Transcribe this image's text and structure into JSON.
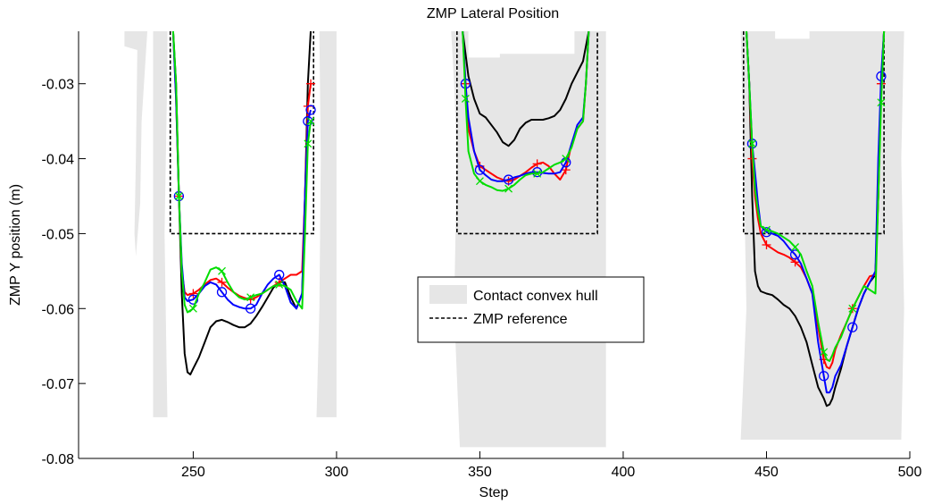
{
  "chart_data": {
    "type": "line",
    "title": "ZMP Lateral Position",
    "xlabel": "Step",
    "ylabel": "ZMP Y position (m)",
    "xlim": [
      210,
      500
    ],
    "ylim": [
      -0.08,
      -0.023
    ],
    "x_ticks": [
      250,
      300,
      350,
      400,
      450,
      500
    ],
    "x_tick_labels": [
      "250",
      "300",
      "350",
      "400",
      "450",
      "500"
    ],
    "y_ticks": [
      -0.08,
      -0.07,
      -0.06,
      -0.05,
      -0.04,
      -0.03
    ],
    "y_tick_labels": [
      "-0.08",
      "-0.07",
      "-0.06",
      "-0.05",
      "-0.04",
      "-0.03"
    ],
    "grid": false,
    "legend": {
      "position": "center",
      "entries": [
        "Contact convex hull",
        "ZMP reference"
      ]
    },
    "colors": {
      "hull": "#e6e6e6",
      "reference": "#000000",
      "black_series": "#000000",
      "red_series": "#ff0000",
      "blue_series": "#0000ff",
      "green_series": "#00dd00"
    },
    "hull_regions": [
      [
        [
          226,
          -0.023
        ],
        [
          241,
          -0.023
        ],
        [
          241,
          -0.0275
        ],
        [
          240,
          -0.05
        ],
        [
          241,
          -0.0745
        ],
        [
          293,
          -0.0745
        ],
        [
          294,
          -0.06
        ],
        [
          294.5,
          -0.04
        ],
        [
          294,
          -0.023
        ],
        [
          300,
          -0.023
        ],
        [
          300,
          -0.0745
        ],
        [
          236,
          -0.0745
        ],
        [
          236,
          -0.023
        ],
        [
          234,
          -0.023
        ],
        [
          232,
          -0.035
        ],
        [
          231.5,
          -0.046
        ],
        [
          230,
          -0.053
        ],
        [
          229.5,
          -0.05
        ],
        [
          230,
          -0.04
        ],
        [
          230.5,
          -0.0255
        ],
        [
          226,
          -0.025
        ]
      ],
      [
        [
          340,
          -0.023
        ],
        [
          346,
          -0.023
        ],
        [
          346,
          -0.0265
        ],
        [
          357,
          -0.0265
        ],
        [
          357,
          -0.026
        ],
        [
          383,
          -0.026
        ],
        [
          383,
          -0.023
        ],
        [
          394,
          -0.023
        ],
        [
          394,
          -0.0785
        ],
        [
          343,
          -0.0785
        ],
        [
          341,
          -0.06
        ],
        [
          342,
          -0.04
        ],
        [
          341,
          -0.03
        ]
      ],
      [
        [
          441,
          -0.023
        ],
        [
          453,
          -0.023
        ],
        [
          453,
          -0.024
        ],
        [
          465,
          -0.024
        ],
        [
          465,
          -0.023
        ],
        [
          498,
          -0.023
        ],
        [
          497,
          -0.04
        ],
        [
          498,
          -0.06
        ],
        [
          497,
          -0.0775
        ],
        [
          441,
          -0.0775
        ],
        [
          443,
          -0.06
        ],
        [
          442,
          -0.04
        ]
      ]
    ],
    "zmp_reference": [
      {
        "x": [
          242,
          242,
          292,
          292
        ],
        "y": [
          -0.023,
          -0.05,
          -0.05,
          -0.023
        ]
      },
      {
        "x": [
          342,
          342,
          391,
          391
        ],
        "y": [
          -0.023,
          -0.05,
          -0.05,
          -0.023
        ]
      },
      {
        "x": [
          442,
          442,
          491,
          491
        ],
        "y": [
          -0.023,
          -0.05,
          -0.05,
          -0.023
        ]
      }
    ],
    "series": [
      {
        "color": "#000000",
        "marker": "none",
        "segments": [
          {
            "x": [
              243,
              244,
              245,
              246,
              247,
              248,
              249,
              250,
              252,
              254,
              256,
              258,
              260,
              262,
              264,
              266,
              268,
              270,
              272,
              274,
              276,
              278,
              280,
              282,
              284,
              286,
              288,
              289,
              290,
              291
            ],
            "y": [
              -0.023,
              -0.03,
              -0.045,
              -0.058,
              -0.066,
              -0.0685,
              -0.0688,
              -0.068,
              -0.0665,
              -0.0645,
              -0.0625,
              -0.0617,
              -0.0615,
              -0.0618,
              -0.0622,
              -0.0625,
              -0.0625,
              -0.062,
              -0.061,
              -0.0598,
              -0.0585,
              -0.0572,
              -0.0565,
              -0.0565,
              -0.0585,
              -0.06,
              -0.058,
              -0.045,
              -0.03,
              -0.023
            ]
          },
          {
            "x": [
              344,
              345,
              346,
              348,
              350,
              352,
              354,
              356,
              358,
              360,
              362,
              364,
              366,
              368,
              370,
              372,
              374,
              376,
              378,
              380,
              382,
              384,
              386,
              387,
              388
            ],
            "y": [
              -0.023,
              -0.026,
              -0.029,
              -0.032,
              -0.034,
              -0.0345,
              -0.0355,
              -0.0365,
              -0.0378,
              -0.0383,
              -0.0375,
              -0.036,
              -0.0352,
              -0.0348,
              -0.0348,
              -0.0348,
              -0.0346,
              -0.0343,
              -0.0335,
              -0.032,
              -0.03,
              -0.0285,
              -0.027,
              -0.025,
              -0.023
            ]
          },
          {
            "x": [
              443,
              444,
              445,
              446,
              447,
              448,
              450,
              452,
              454,
              456,
              458,
              460,
              462,
              464,
              466,
              468,
              470,
              471,
              472,
              473,
              474,
              476,
              478,
              480,
              482,
              484,
              486,
              488,
              489,
              490,
              491
            ],
            "y": [
              -0.023,
              -0.03,
              -0.045,
              -0.055,
              -0.057,
              -0.0577,
              -0.058,
              -0.0582,
              -0.0588,
              -0.0595,
              -0.06,
              -0.061,
              -0.0625,
              -0.0645,
              -0.0675,
              -0.0705,
              -0.072,
              -0.073,
              -0.0728,
              -0.072,
              -0.0705,
              -0.068,
              -0.065,
              -0.0625,
              -0.06,
              -0.058,
              -0.0565,
              -0.0555,
              -0.045,
              -0.03,
              -0.023
            ]
          }
        ]
      },
      {
        "color": "#ff0000",
        "marker": "+",
        "segments": [
          {
            "x": [
              243,
              244,
              245,
              246,
              247,
              248,
              250,
              252,
              254,
              256,
              258,
              260,
              262,
              264,
              266,
              268,
              270,
              272,
              274,
              276,
              278,
              280,
              282,
              284,
              286,
              288,
              289,
              290,
              291
            ],
            "y": [
              -0.023,
              -0.032,
              -0.045,
              -0.055,
              -0.0578,
              -0.0582,
              -0.058,
              -0.0575,
              -0.0568,
              -0.0562,
              -0.056,
              -0.0565,
              -0.0572,
              -0.0578,
              -0.0583,
              -0.0586,
              -0.0588,
              -0.0585,
              -0.058,
              -0.0575,
              -0.057,
              -0.0565,
              -0.056,
              -0.0555,
              -0.0555,
              -0.055,
              -0.045,
              -0.033,
              -0.03
            ]
          },
          {
            "x": [
              344,
              345,
              346,
              348,
              350,
              352,
              354,
              356,
              358,
              360,
              362,
              364,
              366,
              368,
              370,
              372,
              374,
              376,
              378,
              380,
              382,
              384,
              386,
              387,
              388
            ],
            "y": [
              -0.023,
              -0.03,
              -0.036,
              -0.039,
              -0.041,
              -0.0415,
              -0.042,
              -0.0425,
              -0.0428,
              -0.043,
              -0.0428,
              -0.0423,
              -0.0418,
              -0.0412,
              -0.0407,
              -0.0405,
              -0.041,
              -0.042,
              -0.0428,
              -0.0415,
              -0.038,
              -0.036,
              -0.035,
              -0.03,
              -0.023
            ]
          },
          {
            "x": [
              443,
              444,
              445,
              446,
              447,
              448,
              450,
              452,
              454,
              456,
              458,
              460,
              462,
              464,
              466,
              468,
              470,
              471,
              472,
              473,
              474,
              476,
              478,
              480,
              482,
              484,
              486,
              488,
              489,
              490,
              491
            ],
            "y": [
              -0.023,
              -0.03,
              -0.04,
              -0.045,
              -0.048,
              -0.05,
              -0.0515,
              -0.052,
              -0.0525,
              -0.0528,
              -0.0532,
              -0.0538,
              -0.0545,
              -0.056,
              -0.058,
              -0.0625,
              -0.0668,
              -0.0678,
              -0.068,
              -0.0672,
              -0.0655,
              -0.0635,
              -0.0618,
              -0.06,
              -0.0585,
              -0.057,
              -0.0557,
              -0.0555,
              -0.045,
              -0.03,
              -0.023
            ]
          }
        ]
      },
      {
        "color": "#0000ff",
        "marker": "o",
        "segments": [
          {
            "x": [
              243,
              244,
              245,
              246,
              247,
              248,
              250,
              252,
              254,
              256,
              258,
              260,
              262,
              264,
              266,
              268,
              270,
              272,
              274,
              276,
              278,
              280,
              282,
              284,
              286,
              288,
              289,
              290,
              291
            ],
            "y": [
              -0.023,
              -0.032,
              -0.045,
              -0.054,
              -0.0585,
              -0.059,
              -0.0588,
              -0.058,
              -0.057,
              -0.0565,
              -0.0568,
              -0.0578,
              -0.0588,
              -0.0595,
              -0.0598,
              -0.06,
              -0.06,
              -0.0595,
              -0.058,
              -0.0568,
              -0.056,
              -0.0555,
              -0.057,
              -0.0592,
              -0.06,
              -0.058,
              -0.045,
              -0.035,
              -0.0335
            ]
          },
          {
            "x": [
              344,
              345,
              346,
              348,
              350,
              352,
              354,
              356,
              358,
              360,
              362,
              364,
              366,
              368,
              370,
              372,
              374,
              376,
              378,
              380,
              382,
              384,
              386,
              387,
              388
            ],
            "y": [
              -0.023,
              -0.03,
              -0.0345,
              -0.039,
              -0.0415,
              -0.0422,
              -0.0428,
              -0.043,
              -0.043,
              -0.0428,
              -0.0425,
              -0.0423,
              -0.042,
              -0.0418,
              -0.0418,
              -0.0419,
              -0.042,
              -0.042,
              -0.0418,
              -0.0405,
              -0.038,
              -0.0355,
              -0.0345,
              -0.03,
              -0.023
            ]
          },
          {
            "x": [
              443,
              444,
              445,
              446,
              447,
              448,
              450,
              452,
              454,
              456,
              458,
              460,
              462,
              464,
              466,
              468,
              470,
              471,
              472,
              473,
              474,
              476,
              478,
              480,
              482,
              484,
              486,
              488,
              489,
              490,
              491
            ],
            "y": [
              -0.023,
              -0.03,
              -0.038,
              -0.0418,
              -0.046,
              -0.049,
              -0.0498,
              -0.05,
              -0.0503,
              -0.051,
              -0.052,
              -0.0528,
              -0.054,
              -0.056,
              -0.058,
              -0.0645,
              -0.069,
              -0.0712,
              -0.0712,
              -0.0705,
              -0.069,
              -0.0675,
              -0.065,
              -0.0625,
              -0.06,
              -0.058,
              -0.0565,
              -0.055,
              -0.04,
              -0.029,
              -0.023
            ]
          }
        ]
      },
      {
        "color": "#00dd00",
        "marker": "x",
        "segments": [
          {
            "x": [
              243,
              244,
              245,
              246,
              247,
              248,
              250,
              252,
              254,
              256,
              258,
              260,
              262,
              264,
              266,
              268,
              270,
              272,
              274,
              276,
              278,
              280,
              282,
              284,
              286,
              288,
              289,
              290,
              291
            ],
            "y": [
              -0.023,
              -0.03,
              -0.045,
              -0.055,
              -0.0595,
              -0.0605,
              -0.06,
              -0.058,
              -0.0565,
              -0.0548,
              -0.0545,
              -0.055,
              -0.0565,
              -0.0578,
              -0.0585,
              -0.0588,
              -0.0585,
              -0.0582,
              -0.058,
              -0.0575,
              -0.057,
              -0.0568,
              -0.057,
              -0.0575,
              -0.059,
              -0.06,
              -0.05,
              -0.038,
              -0.035
            ]
          },
          {
            "x": [
              344,
              345,
              346,
              348,
              350,
              352,
              354,
              356,
              358,
              360,
              362,
              364,
              366,
              368,
              370,
              372,
              374,
              376,
              378,
              380,
              382,
              384,
              386,
              387,
              388
            ],
            "y": [
              -0.023,
              -0.032,
              -0.039,
              -0.042,
              -0.043,
              -0.0435,
              -0.0438,
              -0.0442,
              -0.0443,
              -0.044,
              -0.0435,
              -0.0428,
              -0.0422,
              -0.042,
              -0.042,
              -0.0418,
              -0.0413,
              -0.0408,
              -0.0405,
              -0.04,
              -0.0385,
              -0.036,
              -0.035,
              -0.03,
              -0.023
            ]
          },
          {
            "x": [
              443,
              444,
              445,
              446,
              447,
              448,
              450,
              452,
              454,
              456,
              458,
              460,
              462,
              464,
              466,
              468,
              470,
              471,
              472,
              473,
              474,
              476,
              478,
              480,
              482,
              484,
              486,
              488,
              489,
              490,
              491
            ],
            "y": [
              -0.023,
              -0.03,
              -0.038,
              -0.044,
              -0.047,
              -0.049,
              -0.0495,
              -0.0497,
              -0.05,
              -0.0505,
              -0.051,
              -0.0518,
              -0.0528,
              -0.055,
              -0.057,
              -0.0618,
              -0.0658,
              -0.0668,
              -0.067,
              -0.0662,
              -0.0652,
              -0.0638,
              -0.0618,
              -0.06,
              -0.0585,
              -0.057,
              -0.0575,
              -0.058,
              -0.045,
              -0.0325,
              -0.023
            ]
          }
        ]
      }
    ]
  }
}
